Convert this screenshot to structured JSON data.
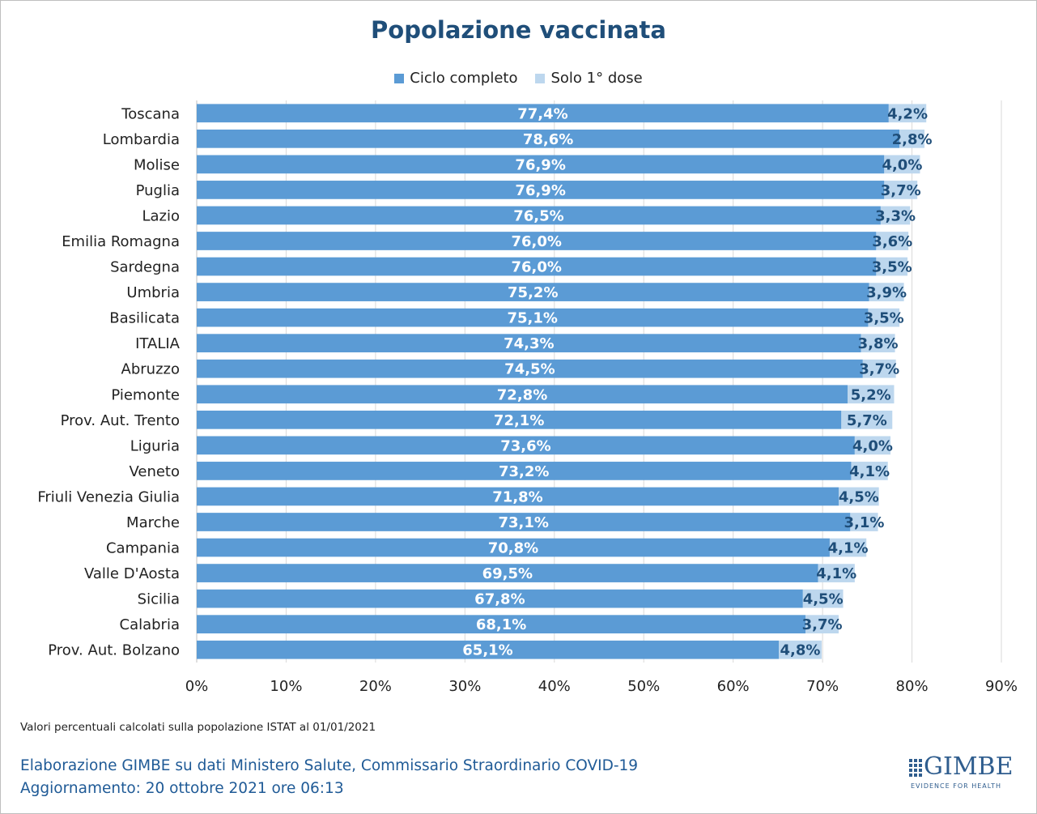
{
  "title": "Popolazione vaccinata",
  "legend": {
    "items": [
      {
        "label": "Ciclo completo",
        "color": "#5b9bd5"
      },
      {
        "label": "Solo 1° dose",
        "color": "#bdd7ee"
      }
    ]
  },
  "footnote": "Valori percentuali calcolati sulla popolazione ISTAT al 01/01/2021",
  "credits": {
    "line1_org": "Elaborazione GIMBE",
    "line1_rest": " su dati Ministero Salute, Commissario Straordinario COVID-19",
    "line2": "Aggiornamento: 20 ottobre 2021 ore 06:13"
  },
  "logo": {
    "word": "GIMBE",
    "tagline": "EVIDENCE FOR HEALTH",
    "icon": "gimbe-grid-icon"
  },
  "colors": {
    "title": "#1f4e79",
    "label_dark": "#1f4e79",
    "label_light": "#ffffff",
    "grid": "#d9d9d9"
  },
  "chart_data": {
    "type": "bar",
    "orientation": "horizontal",
    "stacked": true,
    "title": "Popolazione vaccinata",
    "xlim": [
      0,
      90
    ],
    "xticks": [
      "0%",
      "10%",
      "20%",
      "30%",
      "40%",
      "50%",
      "60%",
      "70%",
      "80%",
      "90%"
    ],
    "xtick_values": [
      0,
      10,
      20,
      30,
      40,
      50,
      60,
      70,
      80,
      90
    ],
    "grid": true,
    "legend_position": "top-center",
    "categories": [
      "Toscana",
      "Lombardia",
      "Molise",
      "Puglia",
      "Lazio",
      "Emilia Romagna",
      "Sardegna",
      "Umbria",
      "Basilicata",
      "ITALIA",
      "Abruzzo",
      "Piemonte",
      "Prov. Aut. Trento",
      "Liguria",
      "Veneto",
      "Friuli Venezia Giulia",
      "Marche",
      "Campania",
      "Valle D'Aosta",
      "Sicilia",
      "Calabria",
      "Prov. Aut. Bolzano"
    ],
    "series": [
      {
        "name": "Ciclo completo",
        "color": "#5b9bd5",
        "values": [
          77.4,
          78.6,
          76.9,
          76.9,
          76.5,
          76.0,
          76.0,
          75.2,
          75.1,
          74.3,
          74.5,
          72.8,
          72.1,
          73.6,
          73.2,
          71.8,
          73.1,
          70.8,
          69.5,
          67.8,
          68.1,
          65.1
        ],
        "labels": [
          "77,4%",
          "78,6%",
          "76,9%",
          "76,9%",
          "76,5%",
          "76,0%",
          "76,0%",
          "75,2%",
          "75,1%",
          "74,3%",
          "74,5%",
          "72,8%",
          "72,1%",
          "73,6%",
          "73,2%",
          "71,8%",
          "73,1%",
          "70,8%",
          "69,5%",
          "67,8%",
          "68,1%",
          "65,1%"
        ]
      },
      {
        "name": "Solo 1° dose",
        "color": "#bdd7ee",
        "values": [
          4.2,
          2.8,
          4.0,
          3.7,
          3.3,
          3.6,
          3.5,
          3.9,
          3.5,
          3.8,
          3.7,
          5.2,
          5.7,
          4.0,
          4.1,
          4.5,
          3.1,
          4.1,
          4.1,
          4.5,
          3.7,
          4.8
        ],
        "labels": [
          "4,2%",
          "2,8%",
          "4,0%",
          "3,7%",
          "3,3%",
          "3,6%",
          "3,5%",
          "3,9%",
          "3,5%",
          "3,8%",
          "3,7%",
          "5,2%",
          "5,7%",
          "4,0%",
          "4,1%",
          "4,5%",
          "3,1%",
          "4,1%",
          "4,1%",
          "4,5%",
          "3,7%",
          "4,8%"
        ]
      }
    ]
  }
}
